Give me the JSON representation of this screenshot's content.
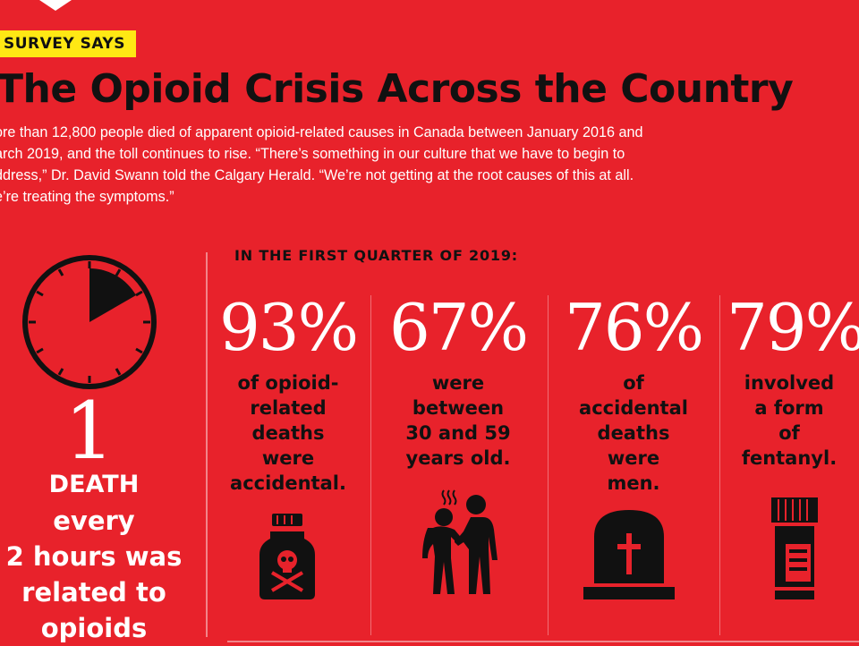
{
  "header": {
    "badge": "SURVEY SAYS",
    "title": "The Opioid Crisis Across the Country",
    "intro_lines": [
      "ore than 12,800 people died of apparent opioid-related causes in Canada between January 2016 and",
      "arch 2019, and the toll continues to rise. “There’s something in our culture that we have to begin to",
      "ddress,” Dr. David Swann told the Calgary Herald. “We’re not getting at the root causes of this at all.",
      "e’re treating the symptoms.”"
    ]
  },
  "left_panel": {
    "icon": "clock-icon",
    "number": "1",
    "lines": [
      "DEATH",
      "every",
      "2 hours was",
      "related to",
      "opioids"
    ]
  },
  "quarter": {
    "label": "IN THE FIRST QUARTER OF 2019:",
    "stats": [
      {
        "percent": "93%",
        "lines": [
          "of opioid-",
          "related",
          "deaths",
          "were",
          "accidental."
        ],
        "icon": "poison-bottle-icon"
      },
      {
        "percent": "67%",
        "lines": [
          "were",
          "between",
          "30 and 59",
          "years old."
        ],
        "icon": "people-sharing-drugs-icon"
      },
      {
        "percent": "76%",
        "lines": [
          "of",
          "accidental",
          "deaths",
          "were",
          "men."
        ],
        "icon": "tombstone-icon"
      },
      {
        "percent": "79%",
        "lines": [
          "involved",
          "a form",
          "of",
          "fentanyl."
        ],
        "icon": "pill-bottle-icon"
      }
    ]
  },
  "colors": {
    "background": "#e8222b",
    "badge": "#ffe814",
    "dark_text": "#111111",
    "light_text": "#ffffff"
  }
}
